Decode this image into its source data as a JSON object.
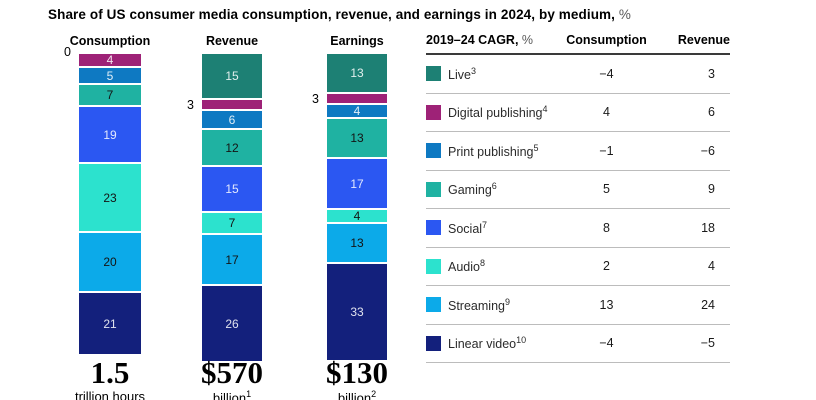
{
  "title": {
    "text": "Share of US consumer media consumption, revenue, and earnings in 2024, by medium,",
    "unit": "%"
  },
  "chart_data": {
    "type": "bar",
    "stacked": true,
    "unit": "%",
    "ylim": [
      0,
      100
    ],
    "title": "Share of US consumer media consumption, revenue, and earnings in 2024, by medium, %",
    "columns": [
      {
        "label": "Consumption",
        "axis_zero": "0",
        "total": "1.5",
        "total_unit": "trillion hours",
        "total_unit_sup": ""
      },
      {
        "label": "Revenue",
        "total": "$570",
        "total_unit": "billion",
        "total_unit_sup": "1"
      },
      {
        "label": "Earnings",
        "total": "$130",
        "total_unit": "billion",
        "total_unit_sup": "2"
      }
    ],
    "series": [
      {
        "name": "Live",
        "sup": "3",
        "color": "#1d8074",
        "text": "light",
        "values": [
          0,
          15,
          13
        ]
      },
      {
        "name": "Digital publishing",
        "sup": "4",
        "color": "#9e2277",
        "text": "light",
        "values": [
          4,
          3,
          3
        ]
      },
      {
        "name": "Print publishing",
        "sup": "5",
        "color": "#0e79c2",
        "text": "light",
        "values": [
          5,
          6,
          4
        ]
      },
      {
        "name": "Gaming",
        "sup": "6",
        "color": "#1fb2a2",
        "text": "dark",
        "values": [
          7,
          12,
          13
        ]
      },
      {
        "name": "Social",
        "sup": "7",
        "color": "#2b57f2",
        "text": "light",
        "values": [
          19,
          15,
          17
        ]
      },
      {
        "name": "Audio",
        "sup": "8",
        "color": "#2ce2ce",
        "text": "dark",
        "values": [
          23,
          7,
          4
        ]
      },
      {
        "name": "Streaming",
        "sup": "9",
        "color": "#0caae9",
        "text": "dark",
        "values": [
          20,
          17,
          13
        ]
      },
      {
        "name": "Linear video",
        "sup": "10",
        "color": "#13207c",
        "text": "light",
        "values": [
          21,
          26,
          33
        ]
      }
    ]
  },
  "table": {
    "header": {
      "label": "2019–24 CAGR,",
      "unit": "%",
      "consumption": "Consumption",
      "revenue": "Revenue"
    },
    "rows": [
      {
        "label": "Live",
        "sup": "3",
        "consumption": "−4",
        "revenue": "3"
      },
      {
        "label": "Digital publishing",
        "sup": "4",
        "consumption": "4",
        "revenue": "6"
      },
      {
        "label": "Print publishing",
        "sup": "5",
        "consumption": "−1",
        "revenue": "−6"
      },
      {
        "label": "Gaming",
        "sup": "6",
        "consumption": "5",
        "revenue": "9"
      },
      {
        "label": "Social",
        "sup": "7",
        "consumption": "8",
        "revenue": "18"
      },
      {
        "label": "Audio",
        "sup": "8",
        "consumption": "2",
        "revenue": "4"
      },
      {
        "label": "Streaming",
        "sup": "9",
        "consumption": "13",
        "revenue": "24"
      },
      {
        "label": "Linear video",
        "sup": "10",
        "consumption": "−4",
        "revenue": "−5"
      }
    ]
  }
}
